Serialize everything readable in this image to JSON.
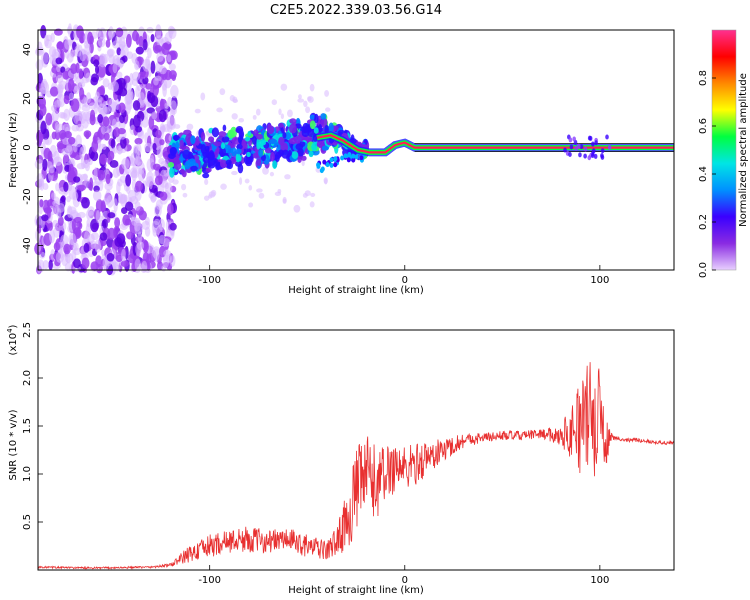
{
  "title": "C2E5.2022.339.03.56.G14",
  "chart_data": [
    {
      "type": "heatmap",
      "title": "C2E5.2022.339.03.56.G14",
      "xlabel": "Height of straight line (km)",
      "ylabel": "Frequency (Hz)",
      "xlim": [
        -188,
        138
      ],
      "ylim": [
        -50,
        48
      ],
      "x_ticks": [
        -100,
        0,
        100
      ],
      "x_tick_labels": [
        "-100",
        "0",
        "100"
      ],
      "y_ticks": [
        -40,
        -20,
        0,
        20,
        40
      ],
      "y_tick_labels": [
        "-40",
        "-20",
        "0",
        "20",
        "40"
      ],
      "colorbar": {
        "label": "Normalized spectral amplitude",
        "range": [
          0,
          1
        ],
        "ticks": [
          0.0,
          0.2,
          0.4,
          0.6,
          0.8
        ],
        "tick_labels": [
          "0.0",
          "0.2",
          "0.4",
          "0.6",
          "0.8"
        ],
        "colors": [
          "#e8d0ff",
          "#8a2be2",
          "#3a00ff",
          "#0090ff",
          "#00e5e5",
          "#00ff40",
          "#ffff00",
          "#ff8800",
          "#ff0000",
          "#ff3090"
        ]
      },
      "ridge": [
        [
          -120,
          -3
        ],
        [
          -100,
          -2
        ],
        [
          -80,
          0
        ],
        [
          -60,
          2
        ],
        [
          -45,
          4
        ],
        [
          -38,
          5
        ],
        [
          -32,
          3
        ],
        [
          -28,
          1
        ],
        [
          -24,
          -1
        ],
        [
          -18,
          -2
        ],
        [
          -10,
          -2
        ],
        [
          -5,
          1
        ],
        [
          0,
          2
        ],
        [
          5,
          0
        ],
        [
          20,
          0
        ],
        [
          80,
          0
        ],
        [
          100,
          0
        ],
        [
          138,
          0
        ]
      ]
    },
    {
      "type": "line",
      "xlabel": "Height of straight line (km)",
      "ylabel": "SNR (10 * v/v)",
      "y_multiplier": "(x10",
      "y_multiplier_exp": "4",
      "y_multiplier_close": ")",
      "xlim": [
        -188,
        138
      ],
      "ylim": [
        0,
        2.5
      ],
      "x_ticks": [
        -100,
        0,
        100
      ],
      "x_tick_labels": [
        "-100",
        "0",
        "100"
      ],
      "y_ticks": [
        0.5,
        1.0,
        1.5,
        2.0,
        2.5
      ],
      "y_tick_labels": [
        "0.5",
        "1.0",
        "1.5",
        "2.0",
        "2.5"
      ],
      "line_color": "#e83030",
      "series": [
        {
          "x": [
            -188,
            -160,
            -130,
            -120,
            -112,
            -100,
            -90,
            -80,
            -70,
            -60,
            -50,
            -40,
            -35,
            -30,
            -25,
            -20,
            -15,
            -10,
            -5,
            0,
            10,
            20,
            30,
            40,
            50,
            60,
            70,
            80,
            85,
            90,
            95,
            100,
            103,
            106,
            110,
            120,
            130,
            138
          ],
          "values": [
            0.03,
            0.02,
            0.03,
            0.05,
            0.15,
            0.25,
            0.3,
            0.32,
            0.3,
            0.32,
            0.25,
            0.2,
            0.3,
            0.5,
            0.8,
            1.0,
            0.9,
            1.0,
            1.1,
            1.05,
            1.15,
            1.25,
            1.35,
            1.38,
            1.4,
            1.4,
            1.42,
            1.4,
            1.45,
            1.5,
            1.6,
            1.5,
            1.3,
            1.4,
            1.36,
            1.35,
            1.33,
            1.32
          ],
          "noise": [
            0.01,
            0.01,
            0.01,
            0.02,
            0.08,
            0.12,
            0.12,
            0.14,
            0.12,
            0.12,
            0.12,
            0.1,
            0.15,
            0.3,
            0.45,
            0.45,
            0.4,
            0.3,
            0.3,
            0.25,
            0.2,
            0.12,
            0.08,
            0.05,
            0.05,
            0.05,
            0.05,
            0.1,
            0.3,
            0.5,
            0.6,
            0.6,
            0.3,
            0.04,
            0.02,
            0.02,
            0.02,
            0.02
          ]
        }
      ]
    }
  ]
}
